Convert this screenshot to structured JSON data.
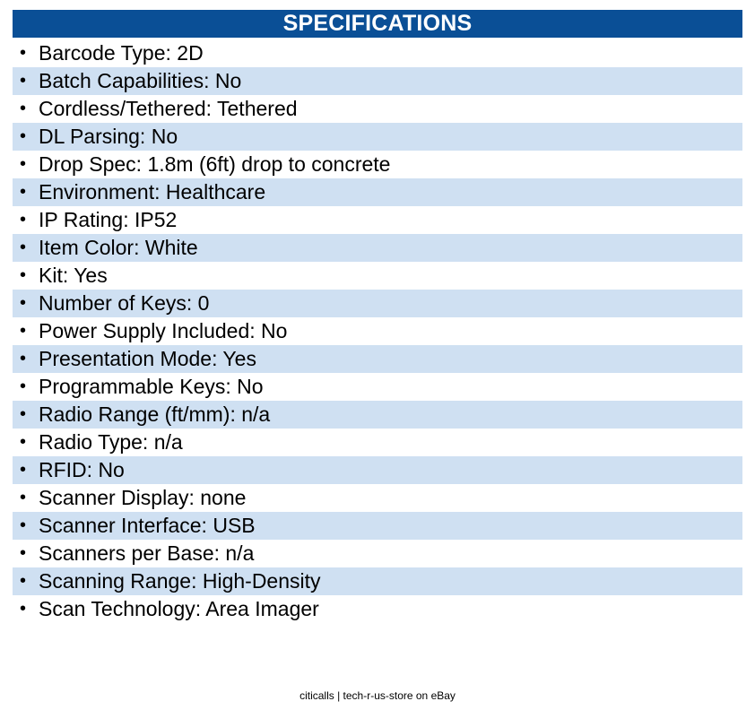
{
  "header": {
    "title": "SPECIFICATIONS",
    "background_color": "#0a4f96",
    "stripe_color": "#cfe0f2"
  },
  "specs": [
    "Barcode Type: 2D",
    "Batch Capabilities: No",
    "Cordless/Tethered: Tethered",
    "DL Parsing: No",
    "Drop Spec: 1.8m (6ft) drop to concrete",
    "Environment: Healthcare",
    "IP Rating: IP52",
    "Item Color: White",
    "Kit: Yes",
    "Number of Keys: 0",
    "Power Supply Included: No",
    "Presentation Mode: Yes",
    "Programmable Keys: No",
    "Radio Range (ft/mm): n/a",
    "Radio Type: n/a",
    "RFID: No",
    "Scanner Display: none",
    "Scanner Interface: USB",
    "Scanners per Base: n/a",
    "Scanning Range: High-Density",
    "Scan Technology: Area Imager"
  ],
  "footer": {
    "text": "citicalls | tech-r-us-store on eBay"
  }
}
